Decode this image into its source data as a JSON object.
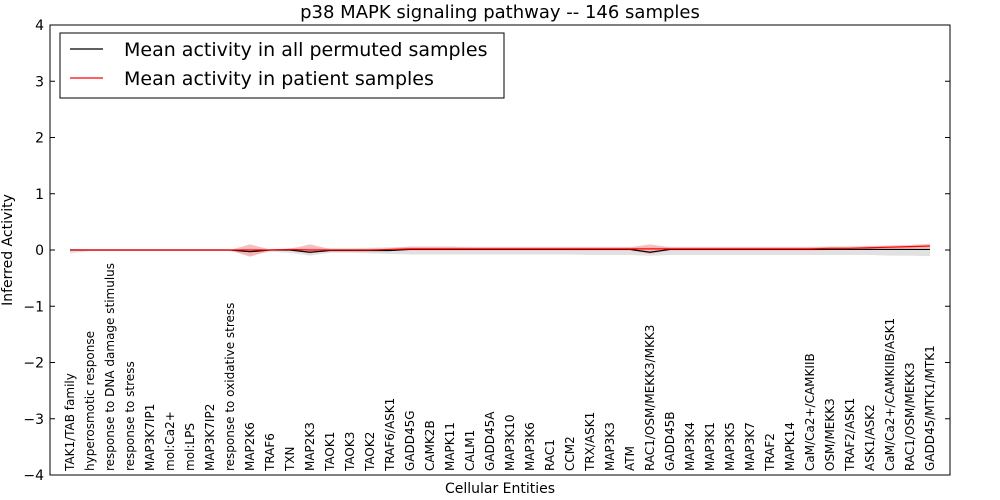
{
  "chart_data": {
    "type": "line",
    "title": "p38 MAPK signaling pathway -- 146 samples",
    "xlabel": "Cellular Entities",
    "ylabel": "Inferred Activity",
    "ylim": [
      -4,
      4
    ],
    "yticks": [
      -4,
      -3,
      -2,
      -1,
      0,
      1,
      2,
      3,
      4
    ],
    "ytick_labels": [
      "−4",
      "−3",
      "−2",
      "−1",
      "0",
      "1",
      "2",
      "3",
      "4"
    ],
    "legend_position": "top-left",
    "categories": [
      "TAK1/TAB family",
      "hyperosmotic response",
      "response to DNA damage stimulus",
      "response to stress",
      "MAP3K7IP1",
      "mol:Ca2+",
      "mol:LPS",
      "MAP3K7IP2",
      "response to oxidative stress",
      "MAP2K6",
      "TRAF6",
      "TXN",
      "MAP2K3",
      "TAOK1",
      "TAOK3",
      "TAOK2",
      "TRAF6/ASK1",
      "GADD45G",
      "CAMK2B",
      "MAPK11",
      "CALM1",
      "GADD45A",
      "MAP3K10",
      "MAP3K6",
      "RAC1",
      "CCM2",
      "TRX/ASK1",
      "MAP3K3",
      "ATM",
      "RAC1/OSM/MEKK3/MKK3",
      "GADD45B",
      "MAP3K4",
      "MAP3K1",
      "MAP3K5",
      "MAP3K7",
      "TRAF2",
      "MAPK14",
      "CaM/Ca2+/CAMKIIB",
      "OSM/MEKK3",
      "TRAF2/ASK1",
      "ASK1/ASK2",
      "CaM/Ca2+/CAMKIIB/ASK1",
      "RAC1/OSM/MEKK3",
      "GADD45/MTK1/MTK1"
    ],
    "series": [
      {
        "name": "Mean activity in all permuted samples",
        "color": "#000000",
        "values": [
          0,
          0,
          0,
          0,
          0,
          0,
          0,
          0,
          0,
          -0.03,
          0,
          0,
          -0.04,
          -0.01,
          -0.01,
          -0.01,
          -0.01,
          0.01,
          0.01,
          0.01,
          0.01,
          0.01,
          0.01,
          0.01,
          0.01,
          0.01,
          0.01,
          0.01,
          0.01,
          -0.04,
          0.01,
          0.01,
          0.01,
          0.01,
          0.01,
          0.01,
          0.01,
          0.01,
          0.01,
          0.01,
          0.01,
          0.01,
          0.01,
          0.01
        ],
        "band_upper": [
          0.02,
          0.01,
          0.01,
          0.01,
          0.01,
          0.01,
          0.01,
          0.01,
          0.01,
          0.03,
          0.01,
          0.03,
          0.04,
          0.03,
          0.03,
          0.04,
          0.05,
          0.06,
          0.06,
          0.06,
          0.06,
          0.06,
          0.06,
          0.06,
          0.06,
          0.06,
          0.06,
          0.06,
          0.06,
          0.05,
          0.06,
          0.06,
          0.06,
          0.06,
          0.06,
          0.06,
          0.06,
          0.06,
          0.06,
          0.06,
          0.06,
          0.07,
          0.08,
          0.09
        ],
        "band_lower": [
          -0.06,
          -0.02,
          -0.02,
          -0.02,
          -0.02,
          -0.02,
          -0.02,
          -0.02,
          -0.02,
          -0.1,
          -0.03,
          -0.05,
          -0.1,
          -0.05,
          -0.05,
          -0.06,
          -0.07,
          -0.08,
          -0.08,
          -0.08,
          -0.08,
          -0.08,
          -0.08,
          -0.08,
          -0.08,
          -0.08,
          -0.09,
          -0.09,
          -0.09,
          -0.1,
          -0.09,
          -0.09,
          -0.09,
          -0.09,
          -0.09,
          -0.09,
          -0.09,
          -0.09,
          -0.09,
          -0.09,
          -0.09,
          -0.1,
          -0.1,
          -0.11
        ],
        "band_color": "#d9d9d9"
      },
      {
        "name": "Mean activity in patient samples",
        "color": "#ff0000",
        "values": [
          0,
          0,
          0,
          0,
          0,
          0,
          0,
          0,
          0,
          0,
          0,
          0.01,
          0,
          0,
          0,
          0,
          0.01,
          0.02,
          0.02,
          0.02,
          0.02,
          0.02,
          0.02,
          0.02,
          0.02,
          0.02,
          0.02,
          0.02,
          0.02,
          0.02,
          0.02,
          0.02,
          0.02,
          0.02,
          0.02,
          0.02,
          0.02,
          0.02,
          0.03,
          0.03,
          0.04,
          0.05,
          0.06,
          0.07
        ],
        "band_upper": [
          0,
          0,
          0,
          0,
          0,
          0,
          0,
          0,
          0,
          0.1,
          0.01,
          0.02,
          0.1,
          0.02,
          0.02,
          0.02,
          0.03,
          0.06,
          0.06,
          0.06,
          0.05,
          0.05,
          0.05,
          0.05,
          0.05,
          0.05,
          0.05,
          0.05,
          0.05,
          0.1,
          0.05,
          0.05,
          0.05,
          0.05,
          0.05,
          0.05,
          0.05,
          0.05,
          0.06,
          0.06,
          0.07,
          0.08,
          0.09,
          0.11
        ],
        "band_lower": [
          0,
          0,
          0,
          0,
          0,
          0,
          0,
          0,
          0,
          -0.12,
          -0.01,
          -0.01,
          -0.06,
          -0.01,
          -0.01,
          -0.01,
          -0.01,
          -0.01,
          -0.01,
          -0.01,
          -0.01,
          -0.01,
          -0.01,
          -0.01,
          -0.01,
          -0.01,
          -0.01,
          -0.01,
          -0.01,
          -0.07,
          -0.01,
          -0.01,
          -0.01,
          -0.01,
          -0.01,
          -0.01,
          -0.01,
          -0.01,
          0,
          0,
          0.01,
          0.02,
          0.03,
          0.04
        ],
        "band_color": "#f4a9a9"
      }
    ]
  }
}
